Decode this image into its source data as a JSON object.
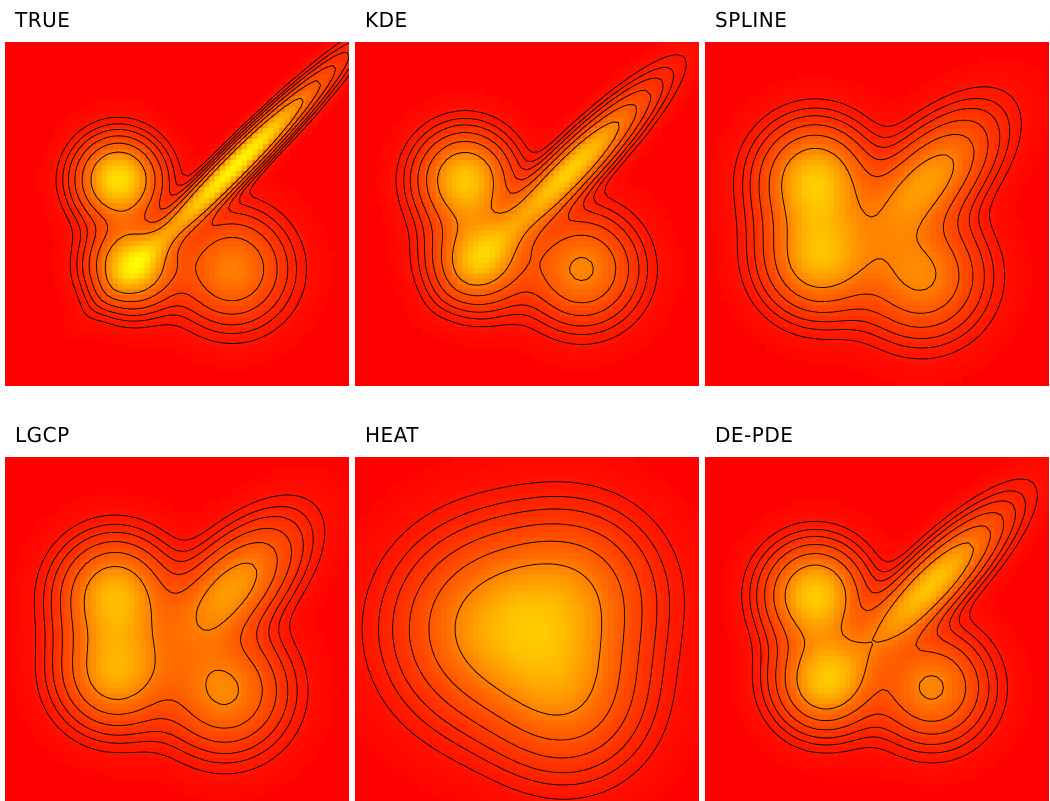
{
  "colors": {
    "background": "#ff0000",
    "contour": "#000000",
    "low": "#ff0000",
    "mid": "#ff6a00",
    "high": "#ffff00"
  },
  "chart_data": [
    {
      "type": "heatmap",
      "title": "TRUE",
      "blobs": [
        {
          "cx": 0.33,
          "cy": 0.4,
          "sx": 0.075,
          "sy": 0.075,
          "rho": 0,
          "w": 0.92
        },
        {
          "cx": 0.37,
          "cy": 0.65,
          "sx": 0.075,
          "sy": 0.075,
          "rho": 0,
          "w": 0.88
        },
        {
          "cx": 0.68,
          "cy": 0.35,
          "sx": 0.16,
          "sy": 0.16,
          "rho": 0.97,
          "w": 1.05
        },
        {
          "cx": 0.66,
          "cy": 0.66,
          "sx": 0.1,
          "sy": 0.1,
          "rho": 0,
          "w": 0.52
        }
      ]
    },
    {
      "type": "heatmap",
      "title": "KDE",
      "blobs": [
        {
          "cx": 0.32,
          "cy": 0.4,
          "sx": 0.085,
          "sy": 0.085,
          "rho": 0,
          "w": 0.8
        },
        {
          "cx": 0.36,
          "cy": 0.63,
          "sx": 0.085,
          "sy": 0.085,
          "rho": 0,
          "w": 0.72
        },
        {
          "cx": 0.63,
          "cy": 0.37,
          "sx": 0.14,
          "sy": 0.14,
          "rho": 0.92,
          "w": 0.85
        },
        {
          "cx": 0.66,
          "cy": 0.66,
          "sx": 0.1,
          "sy": 0.1,
          "rho": 0,
          "w": 0.55
        }
      ]
    },
    {
      "type": "heatmap",
      "title": "SPLINE",
      "blobs": [
        {
          "cx": 0.32,
          "cy": 0.4,
          "sx": 0.1,
          "sy": 0.1,
          "rho": 0,
          "w": 0.78
        },
        {
          "cx": 0.33,
          "cy": 0.63,
          "sx": 0.1,
          "sy": 0.1,
          "rho": 0,
          "w": 0.7
        },
        {
          "cx": 0.65,
          "cy": 0.4,
          "sx": 0.12,
          "sy": 0.12,
          "rho": 0.6,
          "w": 0.62
        },
        {
          "cx": 0.63,
          "cy": 0.68,
          "sx": 0.11,
          "sy": 0.11,
          "rho": 0,
          "w": 0.55
        }
      ]
    },
    {
      "type": "heatmap",
      "title": "LGCP",
      "blobs": [
        {
          "cx": 0.32,
          "cy": 0.4,
          "sx": 0.1,
          "sy": 0.1,
          "rho": 0,
          "w": 0.72
        },
        {
          "cx": 0.32,
          "cy": 0.63,
          "sx": 0.1,
          "sy": 0.1,
          "rho": 0,
          "w": 0.66
        },
        {
          "cx": 0.66,
          "cy": 0.38,
          "sx": 0.12,
          "sy": 0.12,
          "rho": 0.6,
          "w": 0.62
        },
        {
          "cx": 0.64,
          "cy": 0.68,
          "sx": 0.11,
          "sy": 0.11,
          "rho": 0,
          "w": 0.55
        }
      ]
    },
    {
      "type": "heatmap",
      "title": "HEAT",
      "blobs": [
        {
          "cx": 0.4,
          "cy": 0.5,
          "sx": 0.17,
          "sy": 0.17,
          "rho": 0,
          "w": 0.6
        },
        {
          "cx": 0.64,
          "cy": 0.4,
          "sx": 0.15,
          "sy": 0.15,
          "rho": 0,
          "w": 0.42
        },
        {
          "cx": 0.62,
          "cy": 0.7,
          "sx": 0.14,
          "sy": 0.14,
          "rho": 0,
          "w": 0.42
        }
      ]
    },
    {
      "type": "heatmap",
      "title": "DE-PDE",
      "blobs": [
        {
          "cx": 0.32,
          "cy": 0.4,
          "sx": 0.09,
          "sy": 0.09,
          "rho": 0,
          "w": 0.82
        },
        {
          "cx": 0.35,
          "cy": 0.65,
          "sx": 0.09,
          "sy": 0.09,
          "rho": 0,
          "w": 0.76
        },
        {
          "cx": 0.66,
          "cy": 0.37,
          "sx": 0.13,
          "sy": 0.13,
          "rho": 0.85,
          "w": 0.8
        },
        {
          "cx": 0.66,
          "cy": 0.67,
          "sx": 0.1,
          "sy": 0.1,
          "rho": 0,
          "w": 0.55
        }
      ]
    }
  ]
}
